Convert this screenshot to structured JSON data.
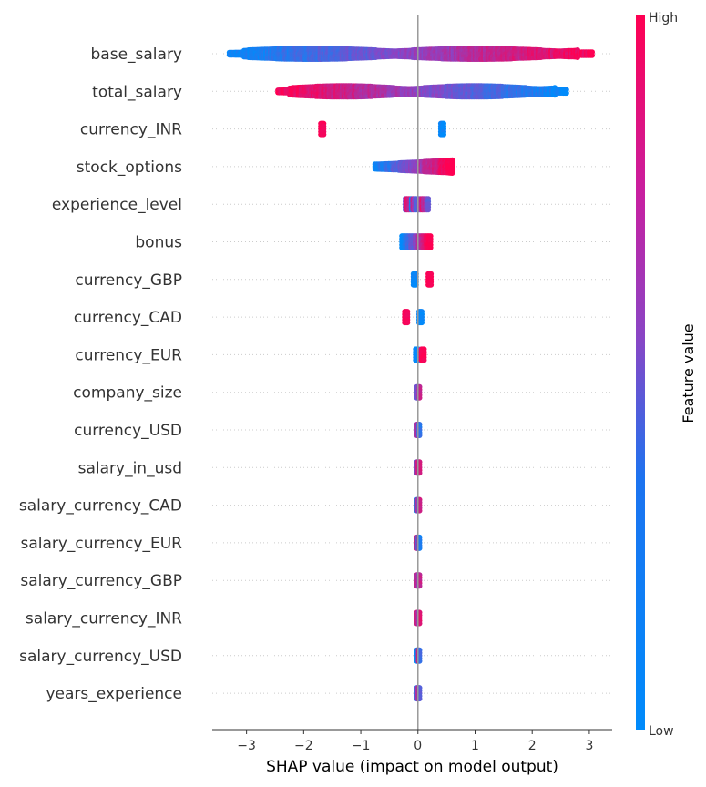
{
  "chart_data": {
    "type": "scatter",
    "subtype": "shap_beeswarm_summary",
    "xlabel": "SHAP value (impact on model output)",
    "xlim": [
      -3.6,
      3.4
    ],
    "xticks": [
      -3,
      -2,
      -1,
      0,
      1,
      2,
      3
    ],
    "xtick_labels": [
      "−3",
      "−2",
      "−1",
      "0",
      "1",
      "2",
      "3"
    ],
    "zero_line": true,
    "grid": "dotted horizontal guide per feature",
    "colorbar": {
      "title": "Feature value",
      "high_label": "High",
      "low_label": "Low",
      "low_color": "#008bfb",
      "high_color": "#ff0052"
    },
    "features": [
      {
        "name": "base_salary",
        "clusters": [
          {
            "min": -3.3,
            "max": 3.05,
            "color": "gradient-low-to-high",
            "spread": "wide"
          }
        ]
      },
      {
        "name": "total_salary",
        "clusters": [
          {
            "min": -2.45,
            "max": 2.6,
            "color": "gradient-high-to-low",
            "spread": "wide"
          }
        ]
      },
      {
        "name": "currency_INR",
        "clusters": [
          {
            "min": -1.7,
            "max": -1.65,
            "color": "high"
          },
          {
            "min": 0.4,
            "max": 0.45,
            "color": "low"
          }
        ]
      },
      {
        "name": "stock_options",
        "clusters": [
          {
            "min": -0.75,
            "max": 0.6,
            "color": "gradient-low-to-high",
            "spread": "medium"
          }
        ]
      },
      {
        "name": "experience_level",
        "clusters": [
          {
            "min": -0.22,
            "max": 0.18,
            "color": "mixed"
          }
        ]
      },
      {
        "name": "bonus",
        "clusters": [
          {
            "min": -0.28,
            "max": 0.22,
            "color": "gradient-low-to-high",
            "spread": "small"
          }
        ]
      },
      {
        "name": "currency_GBP",
        "clusters": [
          {
            "min": -0.08,
            "max": -0.04,
            "color": "low"
          },
          {
            "min": 0.18,
            "max": 0.2,
            "color": "high"
          }
        ]
      },
      {
        "name": "currency_CAD",
        "clusters": [
          {
            "min": -0.23,
            "max": -0.2,
            "color": "high"
          },
          {
            "min": 0.02,
            "max": 0.05,
            "color": "low"
          }
        ]
      },
      {
        "name": "currency_EUR",
        "clusters": [
          {
            "min": -0.04,
            "max": -0.01,
            "color": "low"
          },
          {
            "min": 0.06,
            "max": 0.08,
            "color": "high"
          }
        ]
      },
      {
        "name": "company_size",
        "clusters": [
          {
            "min": -0.02,
            "max": 0.02,
            "color": "mixed"
          }
        ]
      },
      {
        "name": "currency_USD",
        "clusters": [
          {
            "min": -0.02,
            "max": 0.02,
            "color": "mixed"
          }
        ]
      },
      {
        "name": "salary_in_usd",
        "clusters": [
          {
            "min": -0.02,
            "max": 0.02,
            "color": "mixed"
          }
        ]
      },
      {
        "name": "salary_currency_CAD",
        "clusters": [
          {
            "min": -0.02,
            "max": 0.02,
            "color": "mixed"
          }
        ]
      },
      {
        "name": "salary_currency_EUR",
        "clusters": [
          {
            "min": -0.02,
            "max": 0.02,
            "color": "mixed"
          }
        ]
      },
      {
        "name": "salary_currency_GBP",
        "clusters": [
          {
            "min": -0.02,
            "max": 0.02,
            "color": "mixed"
          }
        ]
      },
      {
        "name": "salary_currency_INR",
        "clusters": [
          {
            "min": -0.02,
            "max": 0.02,
            "color": "mixed"
          }
        ]
      },
      {
        "name": "salary_currency_USD",
        "clusters": [
          {
            "min": -0.02,
            "max": 0.02,
            "color": "mixed"
          }
        ]
      },
      {
        "name": "years_experience",
        "clusters": [
          {
            "min": -0.02,
            "max": 0.02,
            "color": "mixed"
          }
        ]
      }
    ]
  }
}
